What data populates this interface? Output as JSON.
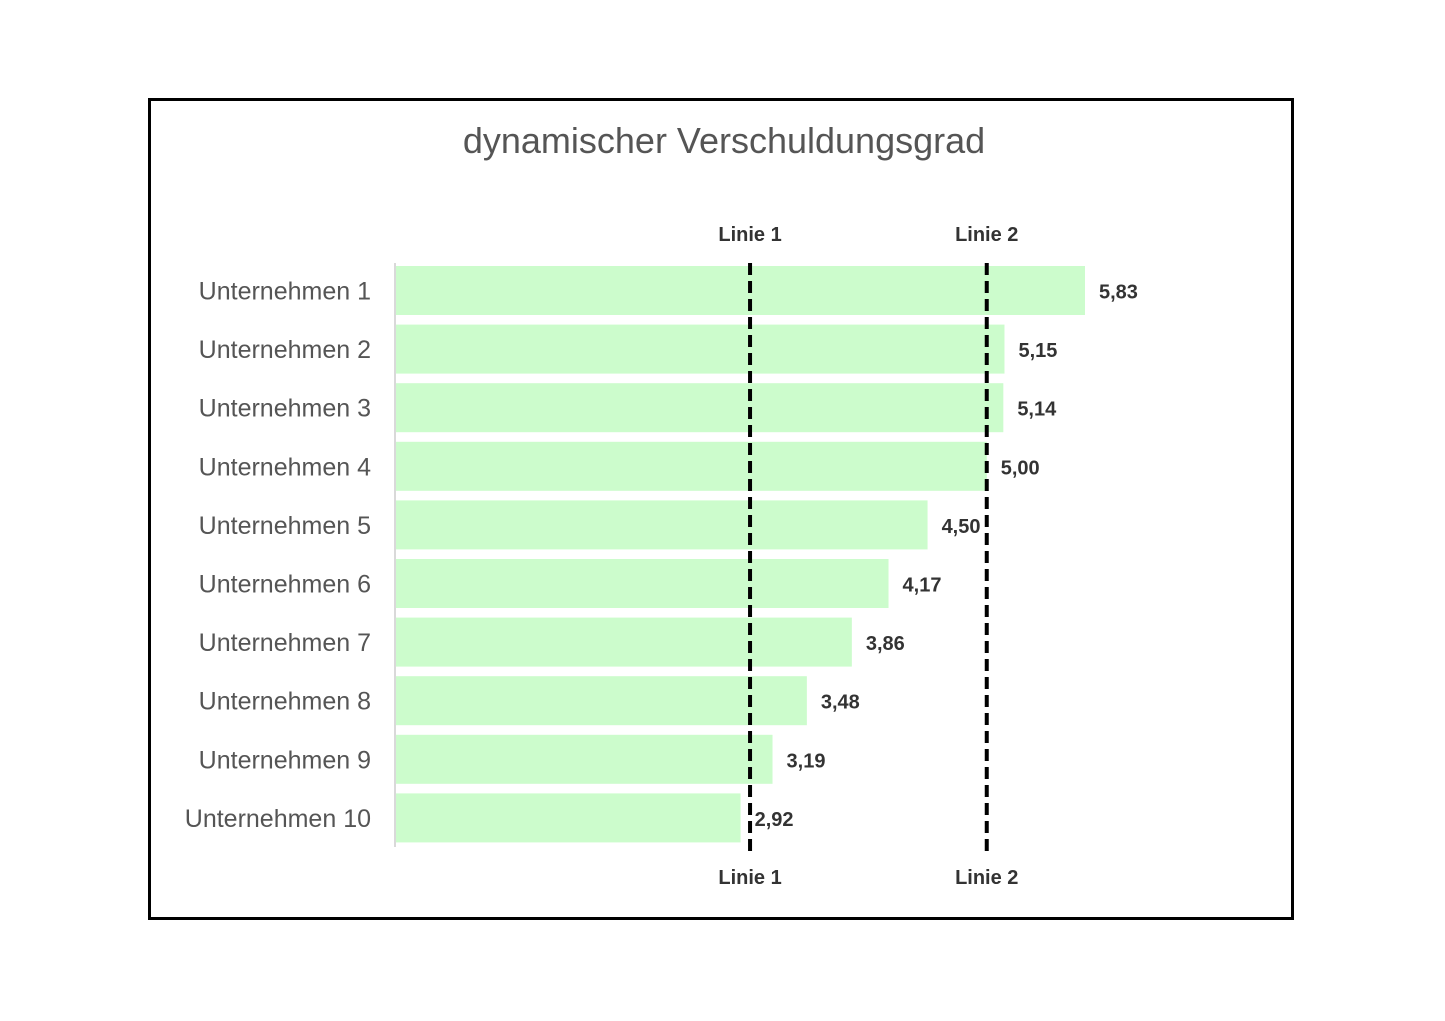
{
  "chart_data": {
    "type": "bar",
    "orientation": "horizontal",
    "title": "dynamischer Verschuldungsgrad",
    "categories": [
      "Unternehmen 1",
      "Unternehmen 2",
      "Unternehmen 3",
      "Unternehmen 4",
      "Unternehmen 5",
      "Unternehmen 6",
      "Unternehmen 7",
      "Unternehmen 8",
      "Unternehmen 9",
      "Unternehmen 10"
    ],
    "values": [
      5.83,
      5.15,
      5.14,
      5.0,
      4.5,
      4.17,
      3.86,
      3.48,
      3.19,
      2.92
    ],
    "value_labels": [
      "5,83",
      "5,15",
      "5,14",
      "5,00",
      "4,50",
      "4,17",
      "3,86",
      "3,48",
      "3,19",
      "2,92"
    ],
    "reference_lines": [
      {
        "name": "Linie 1",
        "value": 3.0
      },
      {
        "name": "Linie 2",
        "value": 5.0
      }
    ],
    "xlim": [
      0,
      5.83
    ],
    "grid": false,
    "legend": "none",
    "bar_color": "#ccfccc",
    "line_color": "#000000"
  }
}
